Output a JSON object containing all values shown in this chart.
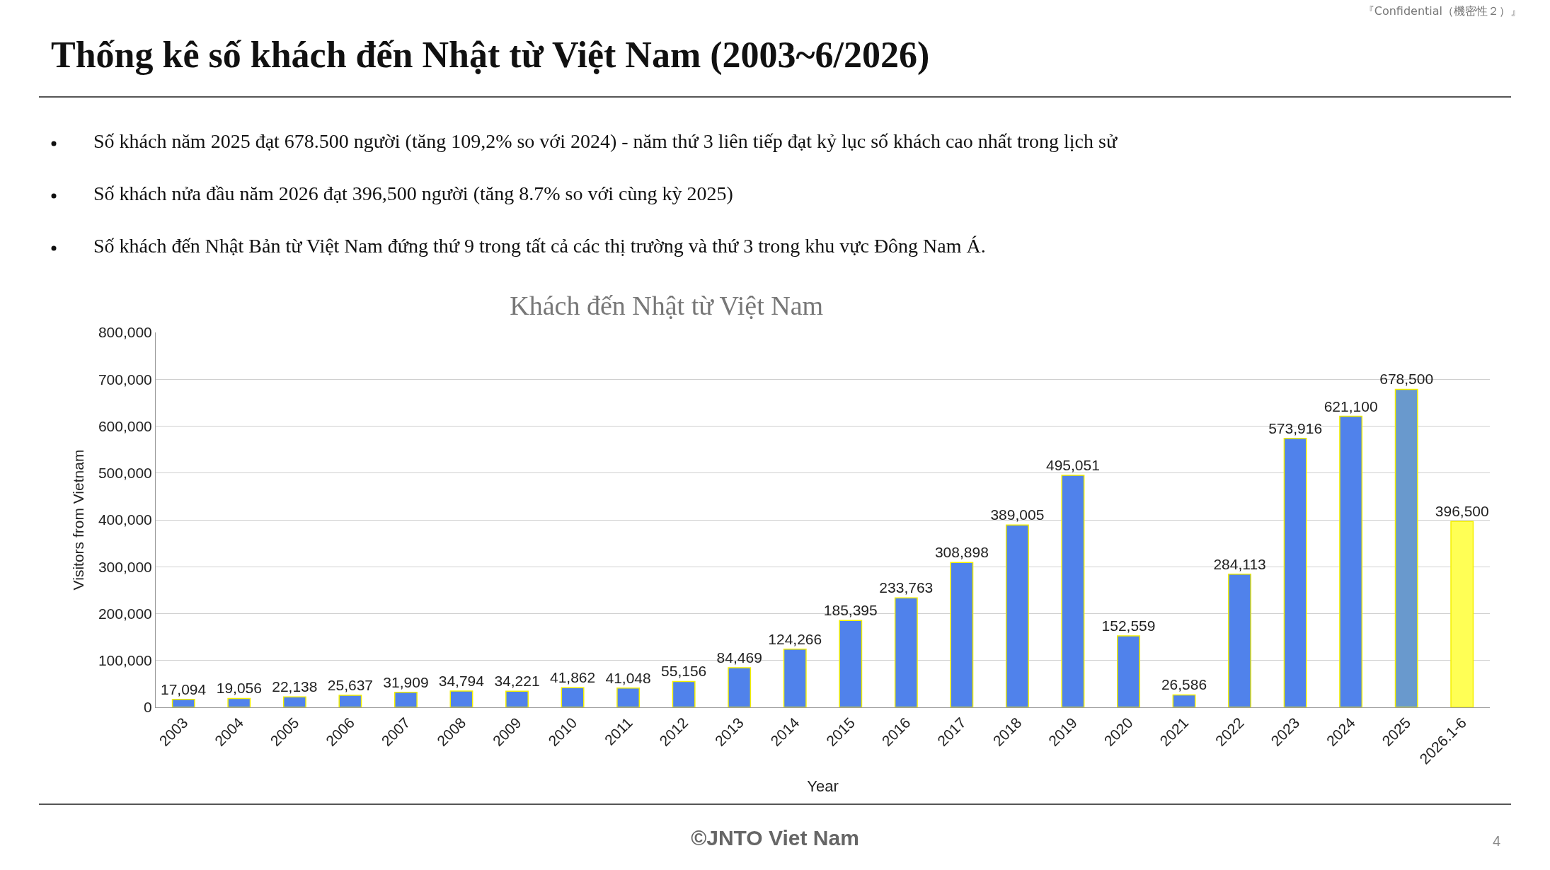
{
  "chart_data": {
    "type": "bar",
    "title": "Thống kê số khách đến Nhật từ Việt Nam (2003~6/2026)",
    "subtitle": "Khách đến Nhật từ Việt Nam",
    "xlabel": "Year",
    "ylabel": "Visitors from Vietnam",
    "categories": [
      "2003",
      "2004",
      "2005",
      "2006",
      "2007",
      "2008",
      "2009",
      "2010",
      "2011",
      "2012",
      "2013",
      "2014",
      "2015",
      "2016",
      "2017",
      "2018",
      "2019",
      "2020",
      "2021",
      "2022",
      "2023",
      "2024",
      "2025",
      "2026.1-6"
    ],
    "values": [
      17094,
      19056,
      22138,
      25637,
      31909,
      34794,
      34221,
      41862,
      41048,
      55156,
      84469,
      124266,
      185395,
      233763,
      308898,
      389005,
      495051,
      152559,
      26586,
      284113,
      573916,
      621100,
      678500,
      396500
    ],
    "colors": [
      "#5082eb",
      "#5082eb",
      "#5082eb",
      "#5082eb",
      "#5082eb",
      "#5082eb",
      "#5082eb",
      "#5082eb",
      "#5082eb",
      "#5082eb",
      "#5082eb",
      "#5082eb",
      "#5082eb",
      "#5082eb",
      "#5082eb",
      "#5082eb",
      "#5082eb",
      "#5082eb",
      "#5082eb",
      "#5082eb",
      "#5082eb",
      "#5082eb",
      "#6999cd",
      "#ffff55"
    ],
    "value_labels": [
      "17,094",
      "19,056",
      "22,138",
      "25,637",
      "31,909",
      "34,794",
      "34,221",
      "41,862",
      "41,048",
      "55,156",
      "84,469",
      "124,266",
      "185,395",
      "233,763",
      "308,898",
      "389,005",
      "495,051",
      "152,559",
      "26,586",
      "284,113",
      "573,916",
      "621,100",
      "678,500",
      "396,500"
    ],
    "ylim": [
      0,
      800000
    ],
    "yticks": [
      {
        "value": 0,
        "label": "0"
      },
      {
        "value": 100000,
        "label": "100,000"
      },
      {
        "value": 200000,
        "label": "200,000"
      },
      {
        "value": 300000,
        "label": "300,000"
      },
      {
        "value": 400000,
        "label": "400,000"
      },
      {
        "value": 500000,
        "label": "500,000"
      },
      {
        "value": 600000,
        "label": "600,000"
      },
      {
        "value": 700000,
        "label": "700,000"
      },
      {
        "value": 800000,
        "label": "800,000"
      }
    ],
    "grid": "y",
    "annotations": [
      "Số khách năm 2025 đạt 678.500 người (tăng 109,2% so với 2024) - năm thứ 3 liên tiếp đạt kỷ lục số khách cao nhất trong lịch sử",
      "Số khách nửa đầu năm 2026 đạt 396,500 người (tăng 8.7% so với cùng kỳ 2025)",
      "Số khách đến Nhật Bản từ Việt Nam đứng thứ 9 trong tất cả các thị trường và thứ 3 trong khu vực Đông Nam Á.",
      "©JNTO Viet Nam",
      "4",
      "『Confidential（機密性２）』"
    ]
  }
}
